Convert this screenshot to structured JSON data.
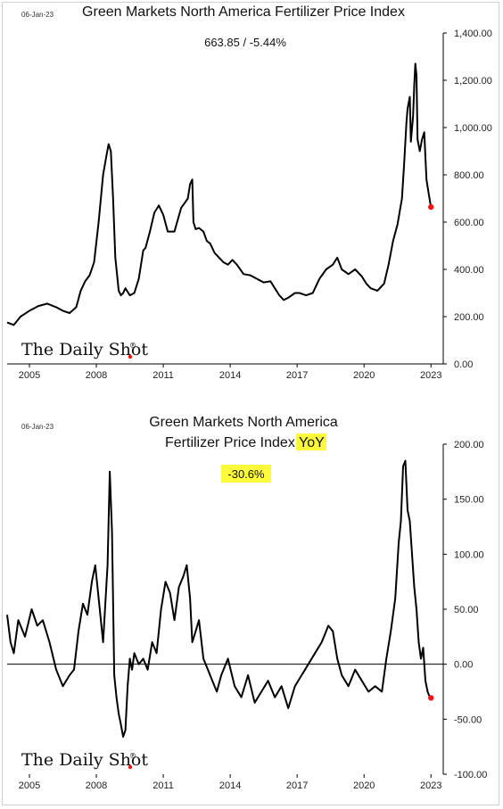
{
  "colors": {
    "line": "#000000",
    "marker": "#e81818",
    "highlight": "#fbfb3c",
    "frame": "#cfcfcf"
  },
  "brand": "The Daily Shot",
  "brand_mark": "®",
  "chart_data": [
    {
      "type": "line",
      "date_label": "06-Jan-23",
      "title": "Green Markets North America Fertilizer Price Index",
      "info": "663.85  /  -5.44%",
      "y_ticks": [
        "0.00",
        "200.00",
        "400.00",
        "600.00",
        "800.00",
        "1,000.00",
        "1,200.00",
        "1,400.00"
      ],
      "x_ticks": [
        "2005",
        "2008",
        "2011",
        "2014",
        "2017",
        "2020",
        "2023"
      ],
      "x_tick_values": [
        2005,
        2008,
        2011,
        2014,
        2017,
        2020,
        2023
      ],
      "xlim": [
        2004.0,
        2023.55
      ],
      "ylim": [
        0,
        1400
      ],
      "last_value": 663.85,
      "x": [
        2004.0,
        2004.3,
        2004.6,
        2005.0,
        2005.4,
        2005.8,
        2006.2,
        2006.5,
        2006.8,
        2007.1,
        2007.3,
        2007.5,
        2007.7,
        2007.9,
        2008.1,
        2008.3,
        2008.45,
        2008.55,
        2008.65,
        2008.75,
        2008.85,
        2009.0,
        2009.1,
        2009.2,
        2009.3,
        2009.5,
        2009.7,
        2009.9,
        2010.0,
        2010.1,
        2010.2,
        2010.4,
        2010.6,
        2010.8,
        2011.0,
        2011.2,
        2011.5,
        2011.8,
        2011.95,
        2012.1,
        2012.2,
        2012.3,
        2012.35,
        2012.45,
        2012.6,
        2012.8,
        2012.95,
        2013.1,
        2013.3,
        2013.5,
        2013.7,
        2013.9,
        2014.1,
        2014.3,
        2014.6,
        2014.9,
        2015.2,
        2015.5,
        2015.8,
        2016.0,
        2016.2,
        2016.4,
        2016.6,
        2016.9,
        2017.1,
        2017.4,
        2017.7,
        2018.0,
        2018.3,
        2018.6,
        2018.8,
        2019.0,
        2019.3,
        2019.6,
        2019.9,
        2020.1,
        2020.3,
        2020.6,
        2020.9,
        2021.1,
        2021.3,
        2021.5,
        2021.7,
        2021.8,
        2021.9,
        2021.95,
        2022.05,
        2022.1,
        2022.2,
        2022.25,
        2022.3,
        2022.35,
        2022.4,
        2022.5,
        2022.6,
        2022.7,
        2022.8,
        2022.9,
        2023.0
      ],
      "y": [
        175,
        165,
        200,
        225,
        245,
        255,
        240,
        225,
        215,
        240,
        310,
        350,
        375,
        430,
        600,
        800,
        880,
        930,
        900,
        700,
        450,
        310,
        290,
        300,
        320,
        290,
        300,
        360,
        420,
        480,
        490,
        560,
        640,
        670,
        630,
        560,
        560,
        660,
        680,
        700,
        760,
        780,
        600,
        570,
        575,
        560,
        520,
        510,
        470,
        450,
        430,
        420,
        440,
        420,
        380,
        375,
        360,
        345,
        350,
        320,
        290,
        270,
        280,
        300,
        300,
        290,
        300,
        360,
        400,
        420,
        450,
        400,
        380,
        400,
        370,
        340,
        320,
        310,
        340,
        420,
        520,
        590,
        700,
        850,
        1020,
        1080,
        1130,
        940,
        1050,
        1180,
        1270,
        1220,
        950,
        900,
        950,
        980,
        780,
        720,
        664
      ]
    },
    {
      "type": "line",
      "date_label": "06-Jan-23",
      "title_lines": [
        "Green Markets North America",
        "Fertilizer Price Index "
      ],
      "title_highlight": "YoY",
      "info": "-30.6%",
      "y_ticks": [
        "-100.00",
        "-50.00",
        "0.00",
        "50.00",
        "100.00",
        "150.00",
        "200.00"
      ],
      "x_ticks": [
        "2005",
        "2008",
        "2011",
        "2014",
        "2017",
        "2020",
        "2023"
      ],
      "x_tick_values": [
        2005,
        2008,
        2011,
        2014,
        2017,
        2020,
        2023
      ],
      "xlim": [
        2004.0,
        2023.55
      ],
      "ylim": [
        -100,
        200
      ],
      "last_value": -30.6,
      "x": [
        2004.0,
        2004.15,
        2004.3,
        2004.5,
        2004.8,
        2005.1,
        2005.35,
        2005.6,
        2005.9,
        2006.2,
        2006.5,
        2006.8,
        2007.0,
        2007.2,
        2007.4,
        2007.6,
        2007.8,
        2007.95,
        2008.1,
        2008.3,
        2008.5,
        2008.6,
        2008.7,
        2008.8,
        2008.9,
        2009.0,
        2009.1,
        2009.2,
        2009.3,
        2009.4,
        2009.5,
        2009.6,
        2009.7,
        2009.9,
        2010.1,
        2010.3,
        2010.5,
        2010.7,
        2010.9,
        2011.1,
        2011.3,
        2011.5,
        2011.7,
        2011.9,
        2012.05,
        2012.2,
        2012.3,
        2012.45,
        2012.6,
        2012.8,
        2013.0,
        2013.2,
        2013.4,
        2013.6,
        2013.9,
        2014.2,
        2014.5,
        2014.8,
        2015.1,
        2015.4,
        2015.7,
        2016.0,
        2016.3,
        2016.6,
        2016.9,
        2017.2,
        2017.5,
        2017.8,
        2018.1,
        2018.4,
        2018.6,
        2018.8,
        2019.0,
        2019.3,
        2019.6,
        2019.9,
        2020.2,
        2020.5,
        2020.8,
        2021.0,
        2021.2,
        2021.4,
        2021.55,
        2021.65,
        2021.75,
        2021.85,
        2021.95,
        2022.05,
        2022.15,
        2022.25,
        2022.35,
        2022.45,
        2022.55,
        2022.65,
        2022.75,
        2022.85,
        2022.95,
        2023.0
      ],
      "y": [
        45,
        20,
        10,
        40,
        25,
        50,
        35,
        40,
        20,
        -5,
        -20,
        -10,
        -5,
        30,
        55,
        45,
        75,
        90,
        60,
        20,
        90,
        175,
        120,
        -10,
        -30,
        -45,
        -55,
        -66,
        -60,
        -20,
        5,
        -5,
        10,
        0,
        5,
        -5,
        20,
        10,
        50,
        75,
        65,
        40,
        70,
        80,
        90,
        60,
        20,
        30,
        40,
        5,
        -5,
        -15,
        -25,
        -10,
        5,
        -20,
        -30,
        -10,
        -35,
        -25,
        -15,
        -30,
        -20,
        -40,
        -20,
        -10,
        0,
        10,
        20,
        35,
        30,
        5,
        -10,
        -20,
        -5,
        -15,
        -25,
        -20,
        -25,
        5,
        30,
        60,
        110,
        130,
        180,
        185,
        140,
        130,
        100,
        70,
        50,
        20,
        5,
        15,
        -15,
        -25,
        -30,
        -30.6
      ]
    }
  ]
}
